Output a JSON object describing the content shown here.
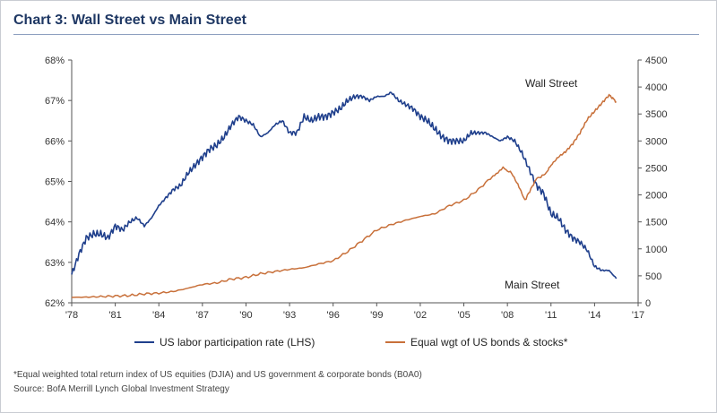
{
  "title": "Chart 3: Wall Street vs Main Street",
  "chart_data": {
    "type": "line",
    "x_ticks": [
      "'78",
      "'81",
      "'84",
      "'87",
      "'90",
      "'93",
      "'96",
      "'99",
      "'02",
      "'05",
      "'08",
      "'11",
      "'14",
      "'17"
    ],
    "y_left_ticks": [
      "68%",
      "67%",
      "66%",
      "65%",
      "64%",
      "63%",
      "62%"
    ],
    "y_right_ticks": [
      "4500",
      "4000",
      "3500",
      "3000",
      "2500",
      "2000",
      "1500",
      "1000",
      "500",
      "0"
    ],
    "xlim": [
      1978,
      2017
    ],
    "ylim_left": [
      62,
      68
    ],
    "ylim_right": [
      0,
      4500
    ],
    "grid": false,
    "legend_position": "bottom",
    "series": [
      {
        "name": "US labor participation rate (LHS)",
        "axis": "left",
        "color": "#1f3f8c",
        "points": [
          [
            1978,
            62.7
          ],
          [
            1978.5,
            63.2
          ],
          [
            1979,
            63.6
          ],
          [
            1979.5,
            63.7
          ],
          [
            1980,
            63.7
          ],
          [
            1980.5,
            63.6
          ],
          [
            1981,
            63.9
          ],
          [
            1981.5,
            63.8
          ],
          [
            1982,
            64.0
          ],
          [
            1982.5,
            64.1
          ],
          [
            1983,
            63.9
          ],
          [
            1983.5,
            64.1
          ],
          [
            1984,
            64.4
          ],
          [
            1984.5,
            64.6
          ],
          [
            1985,
            64.8
          ],
          [
            1985.5,
            64.9
          ],
          [
            1986,
            65.2
          ],
          [
            1986.5,
            65.4
          ],
          [
            1987,
            65.6
          ],
          [
            1987.5,
            65.8
          ],
          [
            1988,
            65.9
          ],
          [
            1988.5,
            66.1
          ],
          [
            1989,
            66.4
          ],
          [
            1989.5,
            66.6
          ],
          [
            1990,
            66.5
          ],
          [
            1990.5,
            66.4
          ],
          [
            1991,
            66.1
          ],
          [
            1991.5,
            66.2
          ],
          [
            1992,
            66.4
          ],
          [
            1992.5,
            66.5
          ],
          [
            1993,
            66.2
          ],
          [
            1993.5,
            66.2
          ],
          [
            1994,
            66.6
          ],
          [
            1994.5,
            66.5
          ],
          [
            1995,
            66.6
          ],
          [
            1995.5,
            66.6
          ],
          [
            1996,
            66.7
          ],
          [
            1996.5,
            66.8
          ],
          [
            1997,
            67.0
          ],
          [
            1997.5,
            67.1
          ],
          [
            1998,
            67.1
          ],
          [
            1998.5,
            67.0
          ],
          [
            1999,
            67.1
          ],
          [
            1999.5,
            67.1
          ],
          [
            2000,
            67.2
          ],
          [
            2000.5,
            67.0
          ],
          [
            2001,
            66.9
          ],
          [
            2001.5,
            66.8
          ],
          [
            2002,
            66.6
          ],
          [
            2002.5,
            66.5
          ],
          [
            2003,
            66.3
          ],
          [
            2003.5,
            66.1
          ],
          [
            2004,
            66.0
          ],
          [
            2004.5,
            66.0
          ],
          [
            2005,
            66.0
          ],
          [
            2005.5,
            66.2
          ],
          [
            2006,
            66.2
          ],
          [
            2006.5,
            66.2
          ],
          [
            2007,
            66.1
          ],
          [
            2007.5,
            66.0
          ],
          [
            2008,
            66.1
          ],
          [
            2008.5,
            66.0
          ],
          [
            2009,
            65.7
          ],
          [
            2009.5,
            65.3
          ],
          [
            2010,
            64.9
          ],
          [
            2010.5,
            64.7
          ],
          [
            2011,
            64.2
          ],
          [
            2011.5,
            64.1
          ],
          [
            2012,
            63.8
          ],
          [
            2012.5,
            63.6
          ],
          [
            2013,
            63.5
          ],
          [
            2013.5,
            63.3
          ],
          [
            2014,
            62.9
          ],
          [
            2014.5,
            62.8
          ],
          [
            2015,
            62.8
          ],
          [
            2015.5,
            62.6
          ]
        ]
      },
      {
        "name": "Equal wgt of US bonds & stocks*",
        "axis": "right",
        "color": "#c8703a",
        "points": [
          [
            1978,
            100
          ],
          [
            1979,
            105
          ],
          [
            1980,
            115
          ],
          [
            1981,
            125
          ],
          [
            1982,
            135
          ],
          [
            1983,
            165
          ],
          [
            1984,
            180
          ],
          [
            1985,
            210
          ],
          [
            1986,
            270
          ],
          [
            1987,
            340
          ],
          [
            1988,
            370
          ],
          [
            1989,
            440
          ],
          [
            1990,
            470
          ],
          [
            1991,
            540
          ],
          [
            1992,
            580
          ],
          [
            1993,
            620
          ],
          [
            1994,
            650
          ],
          [
            1995,
            720
          ],
          [
            1996,
            780
          ],
          [
            1997,
            950
          ],
          [
            1998,
            1150
          ],
          [
            1999,
            1350
          ],
          [
            2000,
            1450
          ],
          [
            2001,
            1530
          ],
          [
            2002,
            1600
          ],
          [
            2003,
            1650
          ],
          [
            2004,
            1800
          ],
          [
            2005,
            1900
          ],
          [
            2006,
            2100
          ],
          [
            2007,
            2350
          ],
          [
            2007.7,
            2500
          ],
          [
            2008.3,
            2400
          ],
          [
            2008.8,
            2150
          ],
          [
            2009.2,
            1900
          ],
          [
            2009.7,
            2150
          ],
          [
            2010,
            2300
          ],
          [
            2010.6,
            2380
          ],
          [
            2011,
            2550
          ],
          [
            2011.5,
            2700
          ],
          [
            2012,
            2800
          ],
          [
            2012.5,
            2950
          ],
          [
            2013,
            3150
          ],
          [
            2013.5,
            3400
          ],
          [
            2014,
            3550
          ],
          [
            2014.5,
            3700
          ],
          [
            2015,
            3850
          ],
          [
            2015.3,
            3780
          ],
          [
            2015.5,
            3720
          ]
        ]
      }
    ],
    "annotations": [
      "Wall Street",
      "Main Street"
    ]
  },
  "footnote_1": "*Equal weighted total return index of US equities (DJIA) and US government & corporate bonds (B0A0)",
  "footnote_2": "Source: BofA Merrill Lynch Global Investment Strategy"
}
